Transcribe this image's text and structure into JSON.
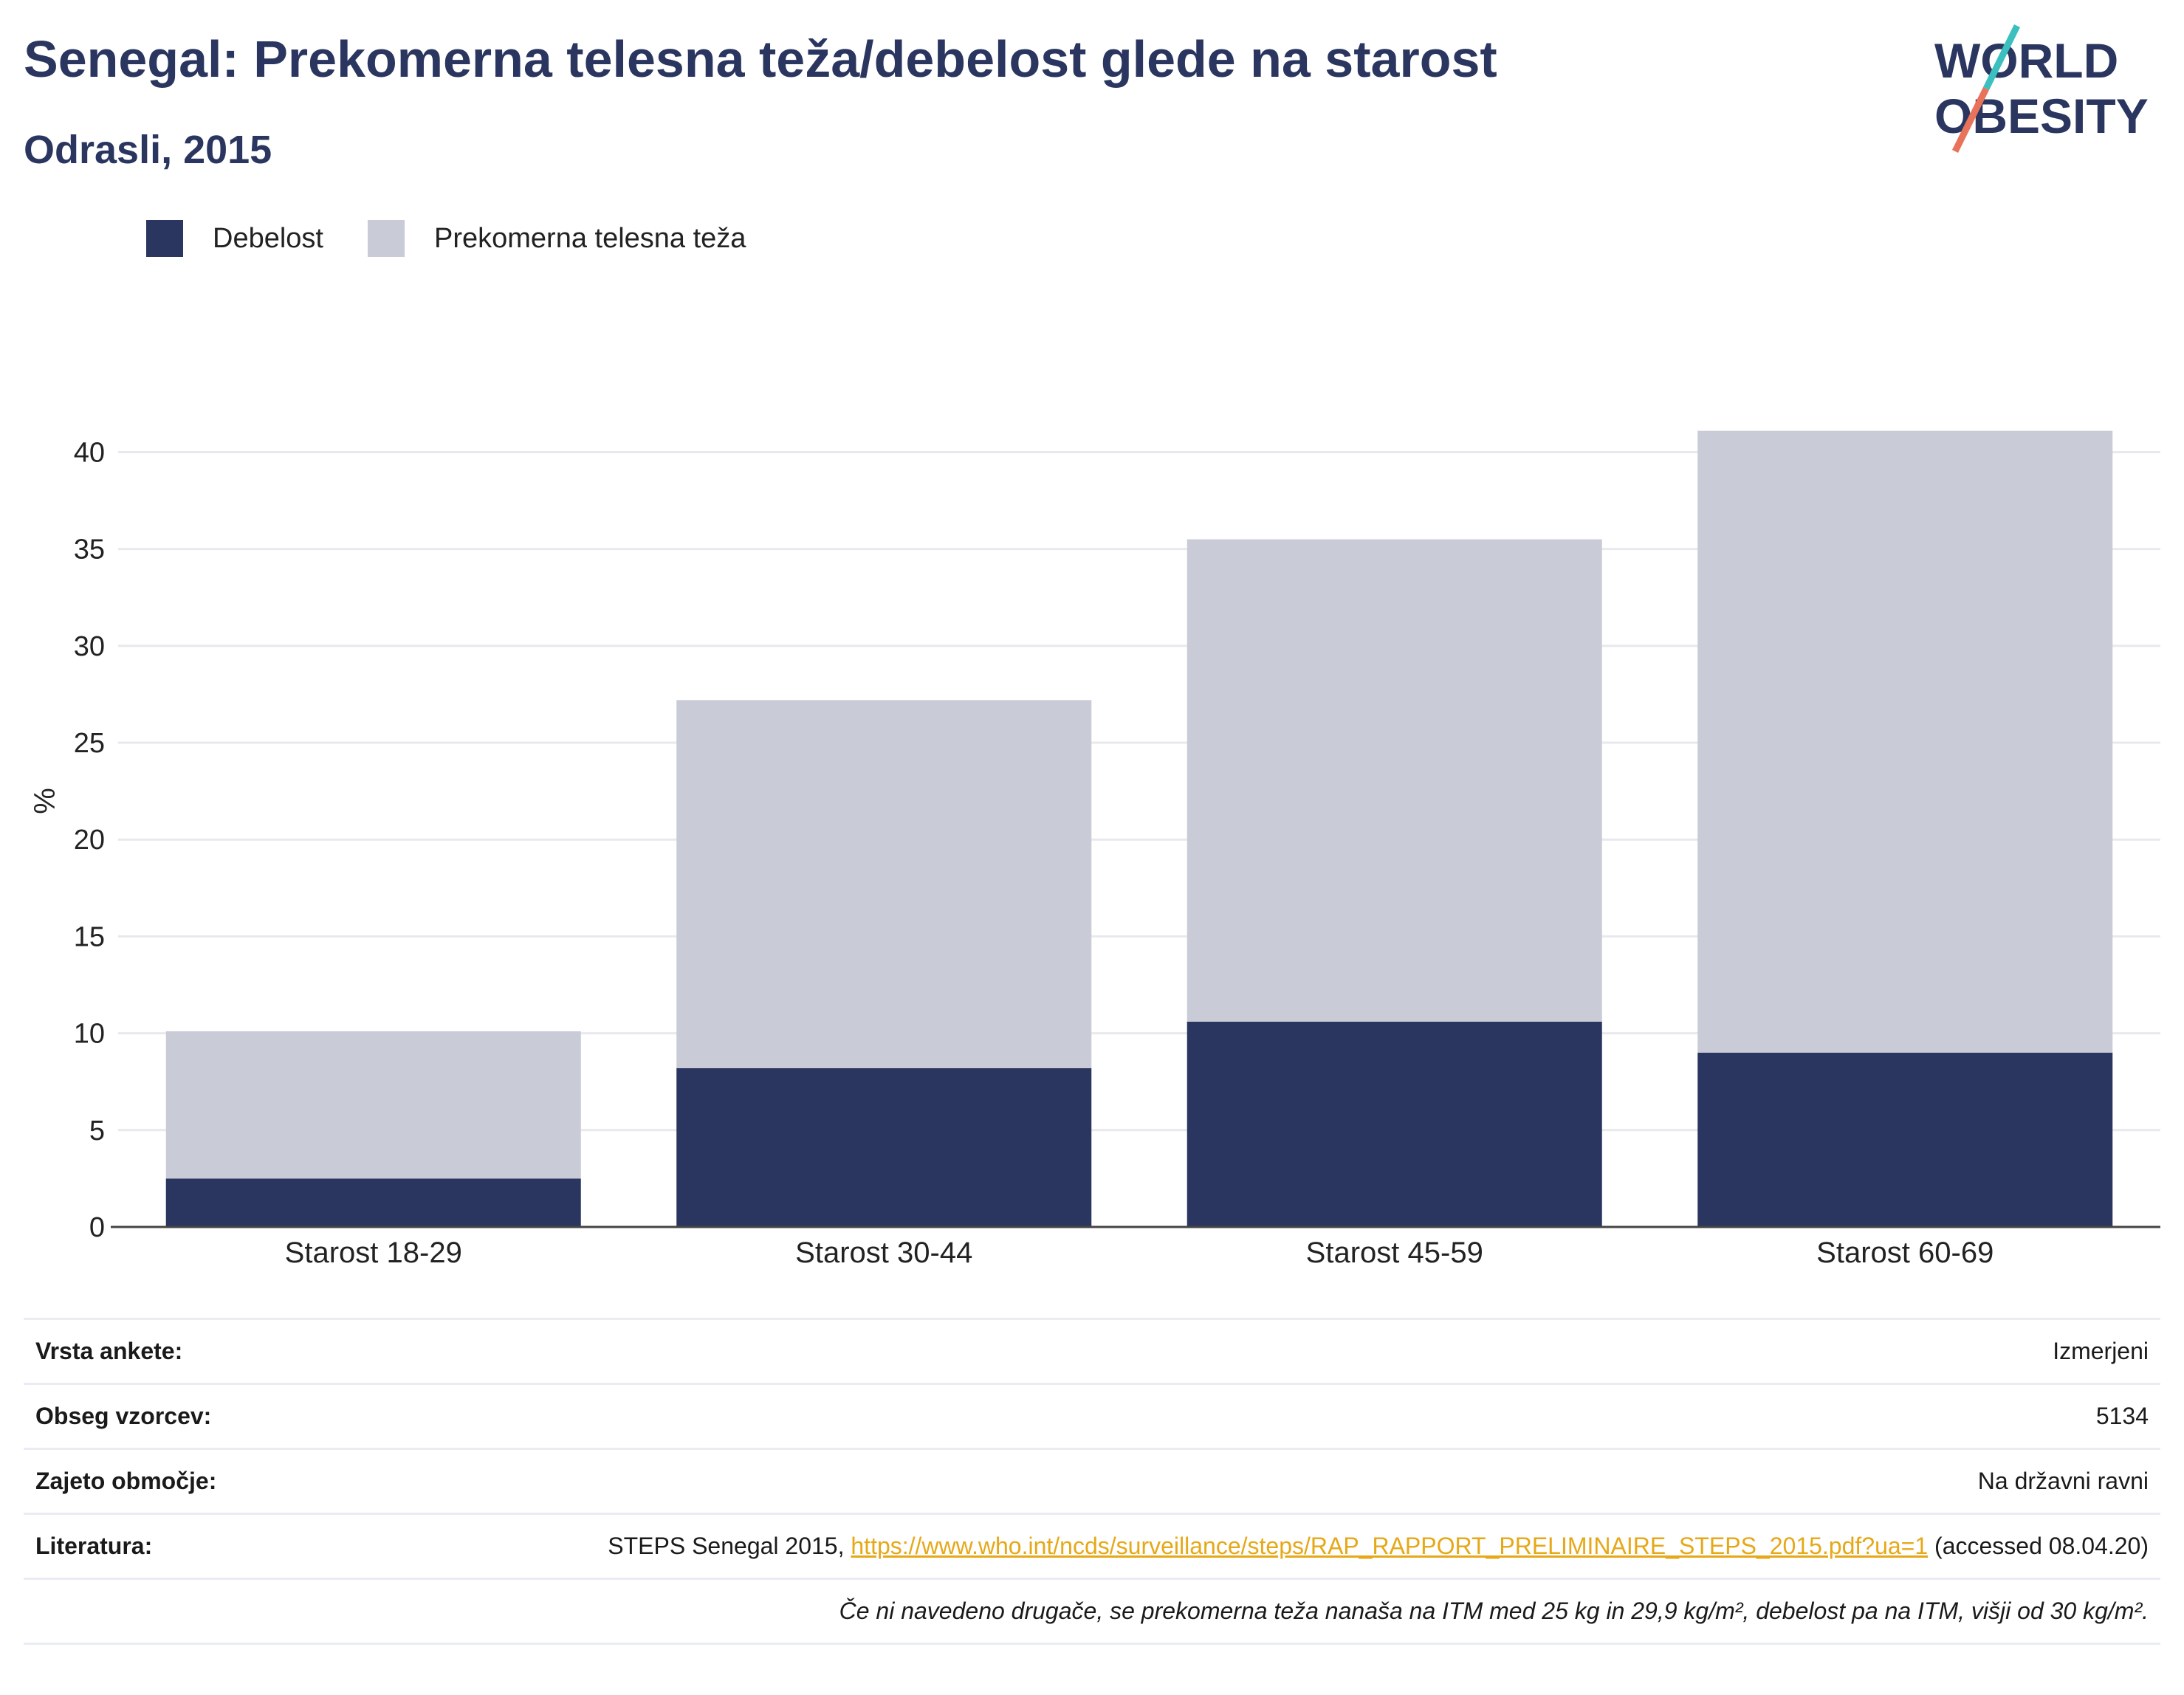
{
  "header": {
    "title": "Senegal: Prekomerna telesna teža/debelost glede na starost",
    "subtitle": "Odrasli, 2015"
  },
  "logo": {
    "line1": "WORLD",
    "line2": "OBESITY",
    "accent_teal": "#3bbfbf",
    "accent_coral": "#e8735a"
  },
  "colors": {
    "obesity": "#2a365f",
    "overweight": "#c9cbd6",
    "text": "#2a365f"
  },
  "chart_data": {
    "type": "bar",
    "stacked": true,
    "categories": [
      "Starost 18-29",
      "Starost 30-44",
      "Starost 45-59",
      "Starost 60-69"
    ],
    "series": [
      {
        "name": "Debelost",
        "values": [
          2.5,
          8.2,
          10.6,
          9.0
        ]
      },
      {
        "name": "Prekomerna telesna teža",
        "values": [
          7.6,
          19.0,
          24.9,
          32.1
        ]
      }
    ],
    "ylabel": "%",
    "ylim": [
      0,
      42
    ],
    "yticks": [
      0,
      5,
      10,
      15,
      20,
      25,
      30,
      35,
      40
    ],
    "grid": true,
    "legend_position": "top-left"
  },
  "info": {
    "survey_type": {
      "label": "Vrsta ankete:",
      "value": "Izmerjeni"
    },
    "sample_size": {
      "label": "Obseg vzorcev:",
      "value": "5134"
    },
    "coverage": {
      "label": "Zajeto območje:",
      "value": "Na državni ravni"
    },
    "literature": {
      "label": "Literatura:",
      "prefix": "STEPS Senegal 2015, ",
      "link": "https://www.who.int/ncds/surveillance/steps/RAP_RAPPORT_PRELIMINAIRE_STEPS_2015.pdf?ua=1",
      "suffix": " (accessed 08.04.20)"
    },
    "footnote": "Če ni navedeno drugače, se prekomerna teža nanaša na ITM med 25 kg in 29,9 kg/m², debelost pa na ITM, višji od 30 kg/m²."
  }
}
